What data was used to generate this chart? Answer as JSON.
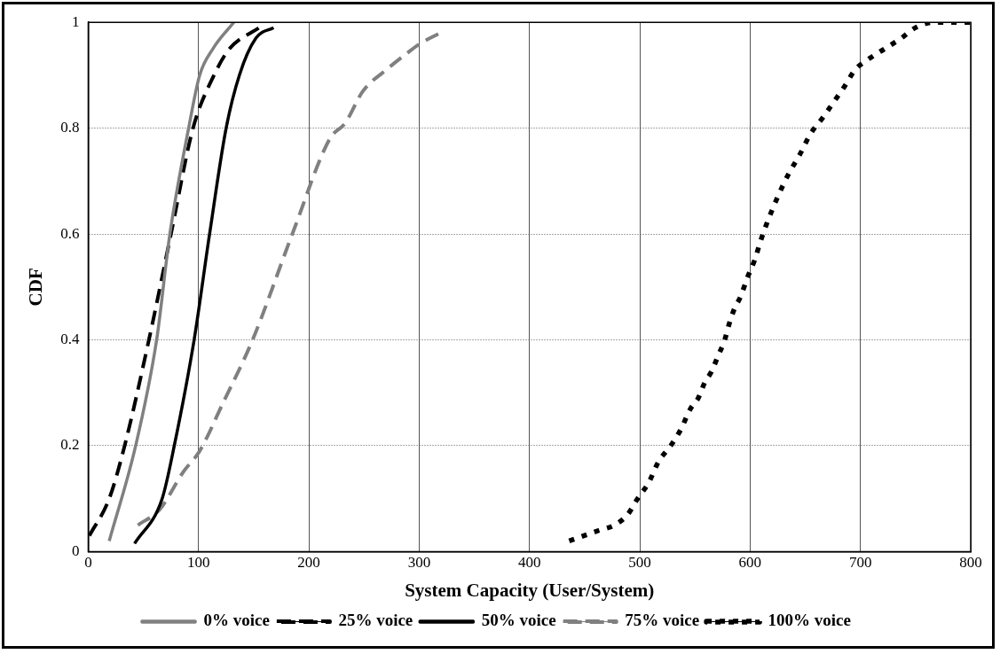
{
  "chart_data": {
    "type": "line",
    "xlabel": "System Capacity (User/System)",
    "ylabel": "CDF",
    "xlim": [
      0,
      800
    ],
    "xticks": [
      0,
      100,
      200,
      300,
      400,
      500,
      600,
      700,
      800
    ],
    "ylim": [
      0,
      1
    ],
    "yticks": [
      0,
      0.2,
      0.4,
      0.6,
      0.8,
      1
    ],
    "grid": true,
    "legend": "bottom",
    "marker": "none",
    "series": [
      {
        "name": "0% voice",
        "color": "#808080",
        "line_style": "solid",
        "x": [
          19,
          43,
          62,
          74,
          91,
          101,
          113,
          132
        ],
        "values": [
          0.02,
          0.2,
          0.4,
          0.6,
          0.8,
          0.9,
          0.95,
          1.0
        ]
      },
      {
        "name": "25% voice",
        "color": "#000000",
        "line_style": "dashed",
        "x": [
          1,
          19,
          33,
          55,
          75,
          95,
          114,
          128,
          155
        ],
        "values": [
          0.03,
          0.1,
          0.2,
          0.4,
          0.6,
          0.8,
          0.9,
          0.95,
          0.99
        ]
      },
      {
        "name": "50% voice",
        "color": "#000000",
        "line_style": "solid",
        "x": [
          42,
          67,
          78,
          96,
          110,
          125,
          137,
          152,
          168
        ],
        "values": [
          0.015,
          0.1,
          0.2,
          0.4,
          0.6,
          0.8,
          0.9,
          0.97,
          0.99
        ]
      },
      {
        "name": "75% voice",
        "color": "#808080",
        "line_style": "dashed",
        "x": [
          45,
          65,
          86,
          101,
          122,
          149,
          185,
          219,
          233,
          249,
          270,
          288,
          301,
          319
        ],
        "values": [
          0.05,
          0.08,
          0.15,
          0.19,
          0.28,
          0.4,
          0.6,
          0.78,
          0.81,
          0.87,
          0.91,
          0.94,
          0.96,
          0.98
        ]
      },
      {
        "name": "100% voice",
        "color": "#000000",
        "line_style": "dotted",
        "x": [
          436,
          463,
          477,
          489,
          498,
          508,
          517,
          528,
          537,
          546,
          553,
          559,
          565,
          571,
          577,
          581,
          586,
          591,
          598,
          604,
          610,
          617,
          625,
          634,
          645,
          655,
          666,
          676,
          686,
          695,
          707,
          722,
          737,
          750,
          767,
          800
        ],
        "values": [
          0.02,
          0.04,
          0.05,
          0.07,
          0.1,
          0.13,
          0.17,
          0.2,
          0.23,
          0.27,
          0.29,
          0.32,
          0.34,
          0.37,
          0.4,
          0.43,
          0.46,
          0.48,
          0.52,
          0.55,
          0.59,
          0.63,
          0.67,
          0.71,
          0.75,
          0.79,
          0.82,
          0.85,
          0.88,
          0.91,
          0.93,
          0.95,
          0.97,
          0.99,
          1.0,
          1.0
        ]
      }
    ]
  }
}
